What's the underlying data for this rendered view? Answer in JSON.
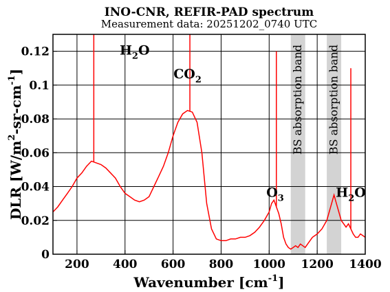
{
  "chart_data": {
    "type": "line",
    "title": "INO-CNR, REFIR-PAD spectrum",
    "subtitle": "Measurement data: 20251202_0740 UTC",
    "xlabel": {
      "main": "Wavenumber [cm",
      "sup": "-1",
      "close": "]"
    },
    "ylabel": {
      "a": "DLR [W/m",
      "sup1": "2",
      "b": "-sr-cm",
      "sup2": "-1",
      "close": "]"
    },
    "xlim": [
      100,
      1400
    ],
    "ylim": [
      0,
      0.13
    ],
    "x_ticks": [
      {
        "value": 200,
        "label": "200"
      },
      {
        "value": 400,
        "label": "400"
      },
      {
        "value": 600,
        "label": "600"
      },
      {
        "value": 800,
        "label": "800"
      },
      {
        "value": 1000,
        "label": "1000"
      },
      {
        "value": 1200,
        "label": "1200"
      },
      {
        "value": 1400,
        "label": "1400"
      }
    ],
    "y_ticks": [
      {
        "value": 0,
        "label": "0"
      },
      {
        "value": 0.02,
        "label": "0.02"
      },
      {
        "value": 0.04,
        "label": "0.04"
      },
      {
        "value": 0.06,
        "label": "0.06"
      },
      {
        "value": 0.08,
        "label": "0.08"
      },
      {
        "value": 0.1,
        "label": "0.1"
      },
      {
        "value": 0.12,
        "label": "0.12"
      }
    ],
    "grid": true,
    "line_color": "#ff0000",
    "band_color": "#d3d3d3",
    "bands": [
      {
        "x_start": 1090,
        "x_end": 1150,
        "label": "BS absorption band"
      },
      {
        "x_start": 1240,
        "x_end": 1300,
        "label": "BS absorption band"
      }
    ],
    "annotations": [
      {
        "name": "h2o-left",
        "main": "H",
        "sub": "2",
        "tail": "O",
        "x": 440,
        "y": 0.118
      },
      {
        "name": "co2",
        "main": "CO",
        "sub": "2",
        "tail": "",
        "x": 660,
        "y": 0.104
      },
      {
        "name": "o3",
        "main": "O",
        "sub": "3",
        "tail": "",
        "x": 1025,
        "y": 0.034
      },
      {
        "name": "h2o-right",
        "main": "H",
        "sub": "2",
        "tail": "O",
        "x": 1340,
        "y": 0.034
      }
    ],
    "series": [
      {
        "x": [
          100,
          120,
          140,
          160,
          180,
          200,
          220,
          240,
          260,
          280,
          300,
          320,
          340,
          360,
          380,
          400,
          420,
          440,
          460,
          480,
          500,
          520,
          540,
          560,
          580,
          600,
          620,
          640,
          660,
          680,
          700,
          720,
          740,
          760,
          780,
          800,
          820,
          840,
          860,
          880,
          900,
          920,
          940,
          960,
          980,
          1000,
          1010,
          1020,
          1030,
          1040,
          1050,
          1060,
          1070,
          1080,
          1090,
          1100,
          1110,
          1120,
          1130,
          1140,
          1150,
          1160,
          1180,
          1200,
          1220,
          1240,
          1250,
          1260,
          1270,
          1280,
          1290,
          1300,
          1310,
          1320,
          1330,
          1340,
          1350,
          1360,
          1370,
          1380,
          1390,
          1400
        ],
        "values": [
          0.025,
          0.028,
          0.032,
          0.036,
          0.04,
          0.045,
          0.048,
          0.052,
          0.055,
          0.054,
          0.053,
          0.051,
          0.048,
          0.045,
          0.04,
          0.036,
          0.034,
          0.032,
          0.031,
          0.032,
          0.034,
          0.04,
          0.046,
          0.052,
          0.06,
          0.07,
          0.078,
          0.083,
          0.085,
          0.084,
          0.078,
          0.06,
          0.03,
          0.015,
          0.009,
          0.008,
          0.008,
          0.009,
          0.009,
          0.01,
          0.01,
          0.011,
          0.013,
          0.016,
          0.02,
          0.025,
          0.03,
          0.032,
          0.028,
          0.024,
          0.018,
          0.01,
          0.006,
          0.004,
          0.003,
          0.004,
          0.005,
          0.004,
          0.006,
          0.005,
          0.004,
          0.006,
          0.01,
          0.012,
          0.015,
          0.02,
          0.025,
          0.03,
          0.035,
          0.03,
          0.025,
          0.02,
          0.018,
          0.016,
          0.018,
          0.015,
          0.012,
          0.01,
          0.01,
          0.012,
          0.011,
          0.01
        ]
      }
    ],
    "spikes": [
      {
        "x": 270,
        "y": 0.13
      },
      {
        "x": 670,
        "y": 0.13
      },
      {
        "x": 1030,
        "y": 0.12
      },
      {
        "x": 1340,
        "y": 0.11
      }
    ]
  }
}
